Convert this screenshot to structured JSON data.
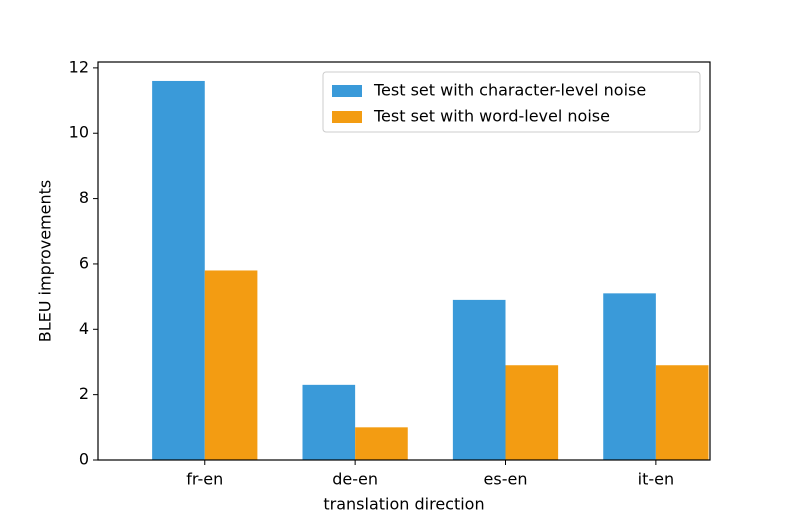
{
  "chart_data": {
    "type": "bar",
    "x_label": "translation direction",
    "y_label": "BLEU improvements",
    "categories": [
      "fr-en",
      "de-en",
      "es-en",
      "it-en"
    ],
    "series": [
      {
        "name": "Test set with character-level noise",
        "color": "#3a9ad9",
        "values": [
          11.6,
          2.3,
          4.9,
          5.1
        ]
      },
      {
        "name": "Test set with word-level noise",
        "color": "#f39c12",
        "values": [
          5.8,
          1.0,
          2.9,
          2.9
        ]
      }
    ],
    "ylim": [
      0,
      12.18
    ],
    "yticks": [
      0,
      2,
      4,
      6,
      8,
      10,
      12
    ],
    "grid": false,
    "legend": "upper right"
  }
}
